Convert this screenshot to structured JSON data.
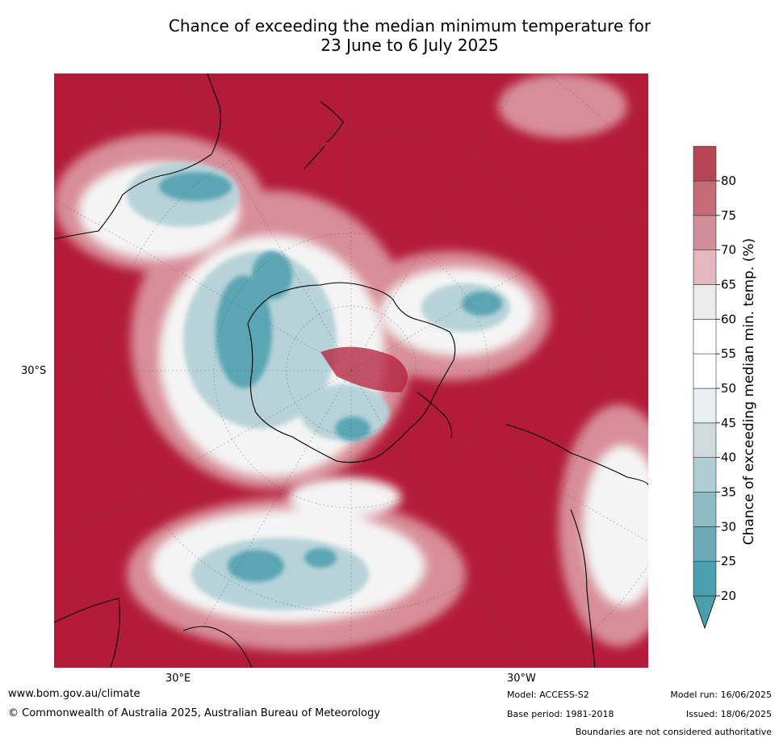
{
  "title_line1": "Chance of exceeding the median minimum temperature for",
  "title_line2": "23 June to 6 July 2025",
  "map": {
    "lat_label": "30°S",
    "lon_labels": [
      "30°E",
      "30°W"
    ]
  },
  "colorbar": {
    "label": "Chance of exceeding median min. temp. (%)",
    "ticks": [
      "20",
      "25",
      "30",
      "35",
      "40",
      "45",
      "50",
      "55",
      "60",
      "65",
      "70",
      "75",
      "80"
    ],
    "colors": [
      "#4a9fae",
      "#6aaab8",
      "#8dbcc6",
      "#afcdd3",
      "#cfdadd",
      "#e8eef1",
      "#ffffff",
      "#ffffff",
      "#ebebeb",
      "#e1b9be",
      "#d28e98",
      "#c66a77",
      "#b94453"
    ],
    "low_color": "#4a9fae",
    "high_color": "#b31b39"
  },
  "footer": {
    "website": "www.bom.gov.au/climate",
    "copyright": "© Commonwealth of Australia 2025, Australian Bureau of Meteorology",
    "model": "Model: ACCESS-S2",
    "base_period": "Base period: 1981-2018",
    "model_run": "Model run: 16/06/2025",
    "issued": "Issued: 18/06/2025",
    "boundaries_note": "Boundaries are not considered authoritative"
  }
}
